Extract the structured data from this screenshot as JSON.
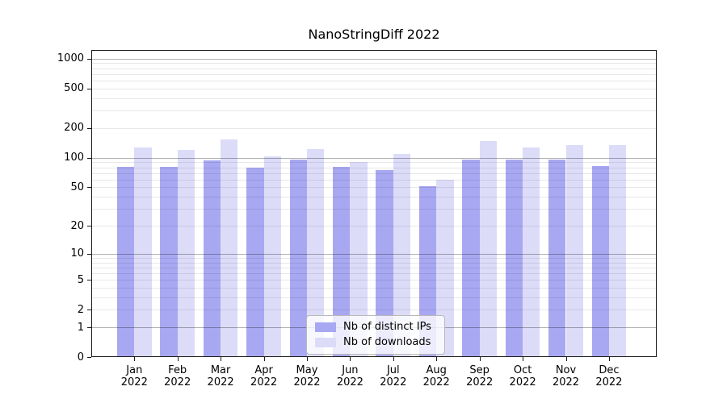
{
  "title": "NanoStringDiff 2022",
  "chart_data": {
    "type": "bar",
    "title": "NanoStringDiff 2022",
    "categories": [
      "Jan 2022",
      "Feb 2022",
      "Mar 2022",
      "Apr 2022",
      "May 2022",
      "Jun 2022",
      "Jul 2022",
      "Aug 2022",
      "Sep 2022",
      "Oct 2022",
      "Nov 2022",
      "Dec 2022"
    ],
    "series": [
      {
        "name": "Nb of distinct IPs",
        "color": "#a8a8f2",
        "values": [
          81,
          81,
          94,
          79,
          95,
          80,
          74,
          51,
          95,
          96,
          95,
          82
        ]
      },
      {
        "name": "Nb of downloads",
        "color": "#dcdcf9",
        "values": [
          126,
          120,
          154,
          103,
          121,
          90,
          108,
          59,
          147,
          127,
          133,
          133
        ]
      }
    ],
    "y_ticks": [
      1000,
      500,
      200,
      100,
      50,
      20,
      10,
      5,
      2,
      1,
      0
    ],
    "scale": "log1p",
    "ylim": [
      0,
      1100
    ],
    "grid": true,
    "legend_position": "bottom-center",
    "xlabel": "",
    "ylabel": ""
  }
}
